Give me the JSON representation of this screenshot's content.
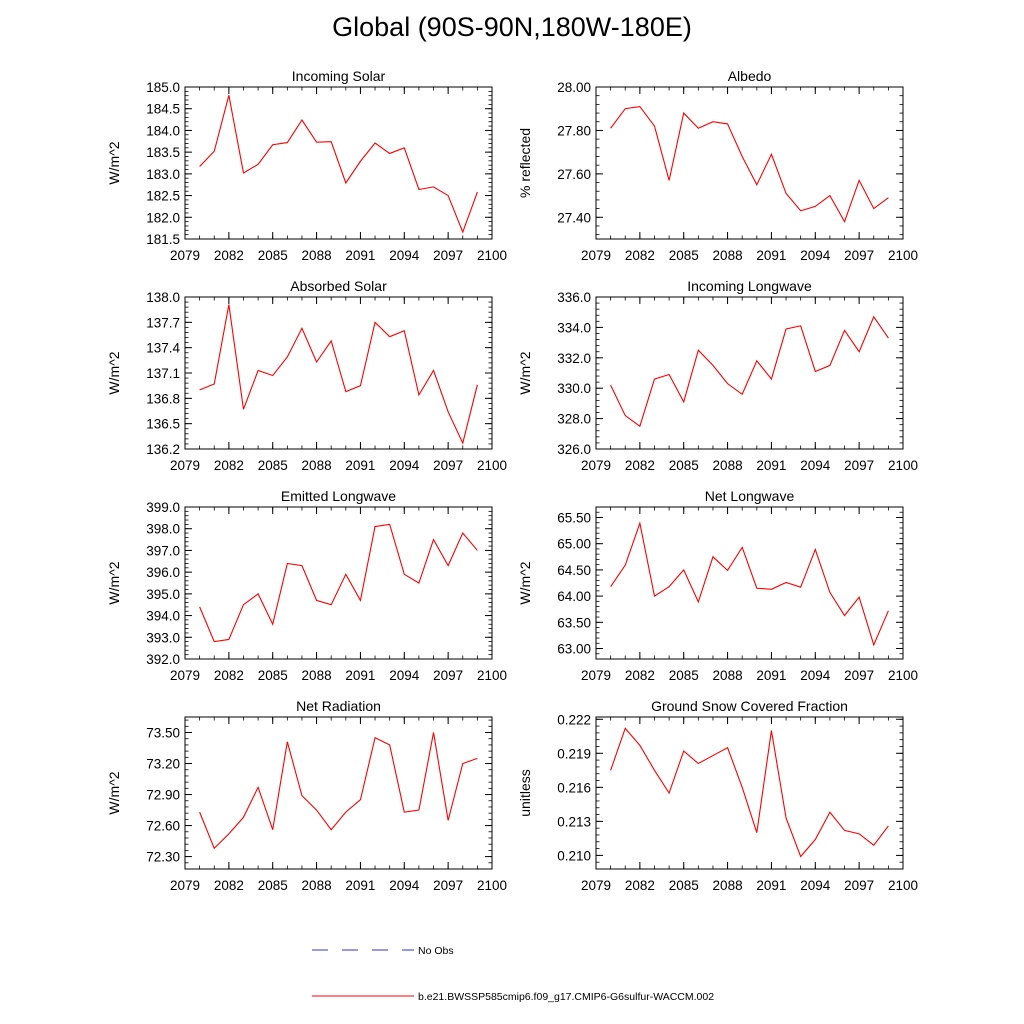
{
  "title": "Global (90S-90N,180W-180E)",
  "chart_data": [
    {
      "type": "line",
      "title": "Incoming Solar",
      "ylabel": "W/m^2",
      "xlabel": "",
      "xlim": [
        2079,
        2100
      ],
      "xticks": [
        2079,
        2082,
        2085,
        2088,
        2091,
        2094,
        2097,
        2100
      ],
      "ylim": [
        181.5,
        185.0
      ],
      "yticks": [
        181.5,
        182.0,
        182.5,
        183.0,
        183.5,
        184.0,
        184.5,
        185.0
      ],
      "ytick_labels": [
        "181.5",
        "182.0",
        "182.5",
        "183.0",
        "183.5",
        "184.0",
        "184.5",
        "185.0"
      ],
      "x": [
        2080,
        2081,
        2082,
        2083,
        2084,
        2085,
        2086,
        2087,
        2088,
        2089,
        2090,
        2091,
        2092,
        2093,
        2094,
        2095,
        2096,
        2097,
        2098,
        2099
      ],
      "series": [
        {
          "values": [
            183.17,
            183.52,
            184.81,
            183.02,
            183.22,
            183.67,
            183.72,
            184.24,
            183.73,
            183.74,
            182.79,
            183.29,
            183.71,
            183.47,
            183.6,
            182.64,
            182.7,
            182.5,
            181.66,
            182.58
          ],
          "color": "#ff0000"
        }
      ]
    },
    {
      "type": "line",
      "title": "Albedo",
      "ylabel": "% reflected",
      "xlabel": "",
      "xlim": [
        2079,
        2100
      ],
      "xticks": [
        2079,
        2082,
        2085,
        2088,
        2091,
        2094,
        2097,
        2100
      ],
      "ylim": [
        27.3,
        28.0
      ],
      "yticks": [
        27.4,
        27.6,
        27.8,
        28.0
      ],
      "ytick_labels": [
        "27.40",
        "27.60",
        "27.80",
        "28.00"
      ],
      "x": [
        2080,
        2081,
        2082,
        2083,
        2084,
        2085,
        2086,
        2087,
        2088,
        2089,
        2090,
        2091,
        2092,
        2093,
        2094,
        2095,
        2096,
        2097,
        2098,
        2099
      ],
      "series": [
        {
          "values": [
            27.81,
            27.9,
            27.91,
            27.82,
            27.57,
            27.88,
            27.81,
            27.84,
            27.83,
            27.68,
            27.55,
            27.69,
            27.51,
            27.43,
            27.45,
            27.5,
            27.38,
            27.57,
            27.44,
            27.49
          ],
          "color": "#ff0000"
        }
      ]
    },
    {
      "type": "line",
      "title": "Absorbed Solar",
      "ylabel": "W/m^2",
      "xlabel": "",
      "xlim": [
        2079,
        2100
      ],
      "xticks": [
        2079,
        2082,
        2085,
        2088,
        2091,
        2094,
        2097,
        2100
      ],
      "ylim": [
        136.2,
        138.0
      ],
      "yticks": [
        136.2,
        136.5,
        136.8,
        137.1,
        137.4,
        137.7,
        138.0
      ],
      "ytick_labels": [
        "136.2",
        "136.5",
        "136.8",
        "137.1",
        "137.4",
        "137.7",
        "138.0"
      ],
      "x": [
        2080,
        2081,
        2082,
        2083,
        2084,
        2085,
        2086,
        2087,
        2088,
        2089,
        2090,
        2091,
        2092,
        2093,
        2094,
        2095,
        2096,
        2097,
        2098,
        2099
      ],
      "series": [
        {
          "values": [
            136.9,
            136.97,
            137.91,
            136.67,
            137.13,
            137.07,
            137.29,
            137.63,
            137.23,
            137.48,
            136.88,
            136.95,
            137.7,
            137.53,
            137.6,
            136.84,
            137.13,
            136.64,
            136.27,
            136.96
          ],
          "color": "#ff0000"
        }
      ]
    },
    {
      "type": "line",
      "title": "Incoming Longwave",
      "ylabel": "W/m^2",
      "xlabel": "",
      "xlim": [
        2079,
        2100
      ],
      "xticks": [
        2079,
        2082,
        2085,
        2088,
        2091,
        2094,
        2097,
        2100
      ],
      "ylim": [
        326.0,
        336.0
      ],
      "yticks": [
        326,
        328,
        330,
        332,
        334,
        336
      ],
      "ytick_labels": [
        "326.0",
        "328.0",
        "330.0",
        "332.0",
        "334.0",
        "336.0"
      ],
      "x": [
        2080,
        2081,
        2082,
        2083,
        2084,
        2085,
        2086,
        2087,
        2088,
        2089,
        2090,
        2091,
        2092,
        2093,
        2094,
        2095,
        2096,
        2097,
        2098,
        2099
      ],
      "series": [
        {
          "values": [
            330.2,
            328.2,
            327.5,
            330.6,
            330.9,
            329.1,
            332.5,
            331.5,
            330.3,
            329.6,
            331.8,
            330.6,
            333.9,
            334.1,
            331.1,
            331.5,
            333.8,
            332.4,
            334.7,
            333.3
          ],
          "color": "#ff0000"
        }
      ]
    },
    {
      "type": "line",
      "title": "Emitted Longwave",
      "ylabel": "W/m^2",
      "xlabel": "",
      "xlim": [
        2079,
        2100
      ],
      "xticks": [
        2079,
        2082,
        2085,
        2088,
        2091,
        2094,
        2097,
        2100
      ],
      "ylim": [
        392.0,
        399.0
      ],
      "yticks": [
        392,
        393,
        394,
        395,
        396,
        397,
        398,
        399
      ],
      "ytick_labels": [
        "392.0",
        "393.0",
        "394.0",
        "395.0",
        "396.0",
        "397.0",
        "398.0",
        "399.0"
      ],
      "x": [
        2080,
        2081,
        2082,
        2083,
        2084,
        2085,
        2086,
        2087,
        2088,
        2089,
        2090,
        2091,
        2092,
        2093,
        2094,
        2095,
        2096,
        2097,
        2098,
        2099
      ],
      "series": [
        {
          "values": [
            394.4,
            392.8,
            392.9,
            394.5,
            395.0,
            393.6,
            396.4,
            396.3,
            394.7,
            394.5,
            395.9,
            394.7,
            398.1,
            398.2,
            395.9,
            395.5,
            397.5,
            396.3,
            397.8,
            397.0
          ],
          "color": "#ff0000"
        }
      ]
    },
    {
      "type": "line",
      "title": "Net Longwave",
      "ylabel": "W/m^2",
      "xlabel": "",
      "xlim": [
        2079,
        2100
      ],
      "xticks": [
        2079,
        2082,
        2085,
        2088,
        2091,
        2094,
        2097,
        2100
      ],
      "ylim": [
        62.8,
        65.7
      ],
      "yticks": [
        63.0,
        63.5,
        64.0,
        64.5,
        65.0,
        65.5
      ],
      "ytick_labels": [
        "63.00",
        "63.50",
        "64.00",
        "64.50",
        "65.00",
        "65.50"
      ],
      "x": [
        2080,
        2081,
        2082,
        2083,
        2084,
        2085,
        2086,
        2087,
        2088,
        2089,
        2090,
        2091,
        2092,
        2093,
        2094,
        2095,
        2096,
        2097,
        2098,
        2099
      ],
      "series": [
        {
          "values": [
            64.18,
            64.59,
            65.39,
            64.0,
            64.18,
            64.5,
            63.89,
            64.75,
            64.49,
            64.93,
            64.15,
            64.13,
            64.26,
            64.17,
            64.89,
            64.07,
            63.63,
            63.98,
            63.07,
            63.72
          ],
          "color": "#ff0000"
        }
      ]
    },
    {
      "type": "line",
      "title": "Net Radiation",
      "ylabel": "W/m^2",
      "xlabel": "",
      "xlim": [
        2079,
        2100
      ],
      "xticks": [
        2079,
        2082,
        2085,
        2088,
        2091,
        2094,
        2097,
        2100
      ],
      "ylim": [
        72.18,
        73.65
      ],
      "yticks": [
        72.3,
        72.6,
        72.9,
        73.2,
        73.5
      ],
      "ytick_labels": [
        "72.30",
        "72.60",
        "72.90",
        "73.20",
        "73.50"
      ],
      "x": [
        2080,
        2081,
        2082,
        2083,
        2084,
        2085,
        2086,
        2087,
        2088,
        2089,
        2090,
        2091,
        2092,
        2093,
        2094,
        2095,
        2096,
        2097,
        2098,
        2099
      ],
      "series": [
        {
          "values": [
            72.73,
            72.38,
            72.52,
            72.68,
            72.97,
            72.56,
            73.41,
            72.89,
            72.75,
            72.56,
            72.73,
            72.85,
            73.45,
            73.38,
            72.73,
            72.75,
            73.5,
            72.65,
            73.2,
            73.25
          ],
          "color": "#ff0000"
        }
      ]
    },
    {
      "type": "line",
      "title": "Ground Snow Covered Fraction",
      "ylabel": "unitless",
      "xlabel": "",
      "xlim": [
        2079,
        2100
      ],
      "xticks": [
        2079,
        2082,
        2085,
        2088,
        2091,
        2094,
        2097,
        2100
      ],
      "ylim": [
        0.2088,
        0.2222
      ],
      "yticks": [
        0.21,
        0.213,
        0.216,
        0.219,
        0.222
      ],
      "ytick_labels": [
        "0.210",
        "0.213",
        "0.216",
        "0.219",
        "0.222"
      ],
      "x": [
        2080,
        2081,
        2082,
        2083,
        2084,
        2085,
        2086,
        2087,
        2088,
        2089,
        2090,
        2091,
        2092,
        2093,
        2094,
        2095,
        2096,
        2097,
        2098,
        2099
      ],
      "series": [
        {
          "values": [
            0.2175,
            0.2212,
            0.2197,
            0.2175,
            0.2155,
            0.2192,
            0.2181,
            0.2188,
            0.2195,
            0.216,
            0.212,
            0.221,
            0.2133,
            0.2099,
            0.2114,
            0.2138,
            0.2122,
            0.2119,
            0.2109,
            0.2126
          ],
          "color": "#ff0000"
        }
      ]
    }
  ],
  "legend": {
    "items": [
      {
        "label": "No Obs",
        "style": "dashed",
        "color": "#3333cc"
      },
      {
        "label": "b.e21.BWSSP585cmip6.f09_g17.CMIP6-G6sulfur-WACCM.002",
        "style": "solid",
        "color": "#ff0000"
      }
    ]
  }
}
